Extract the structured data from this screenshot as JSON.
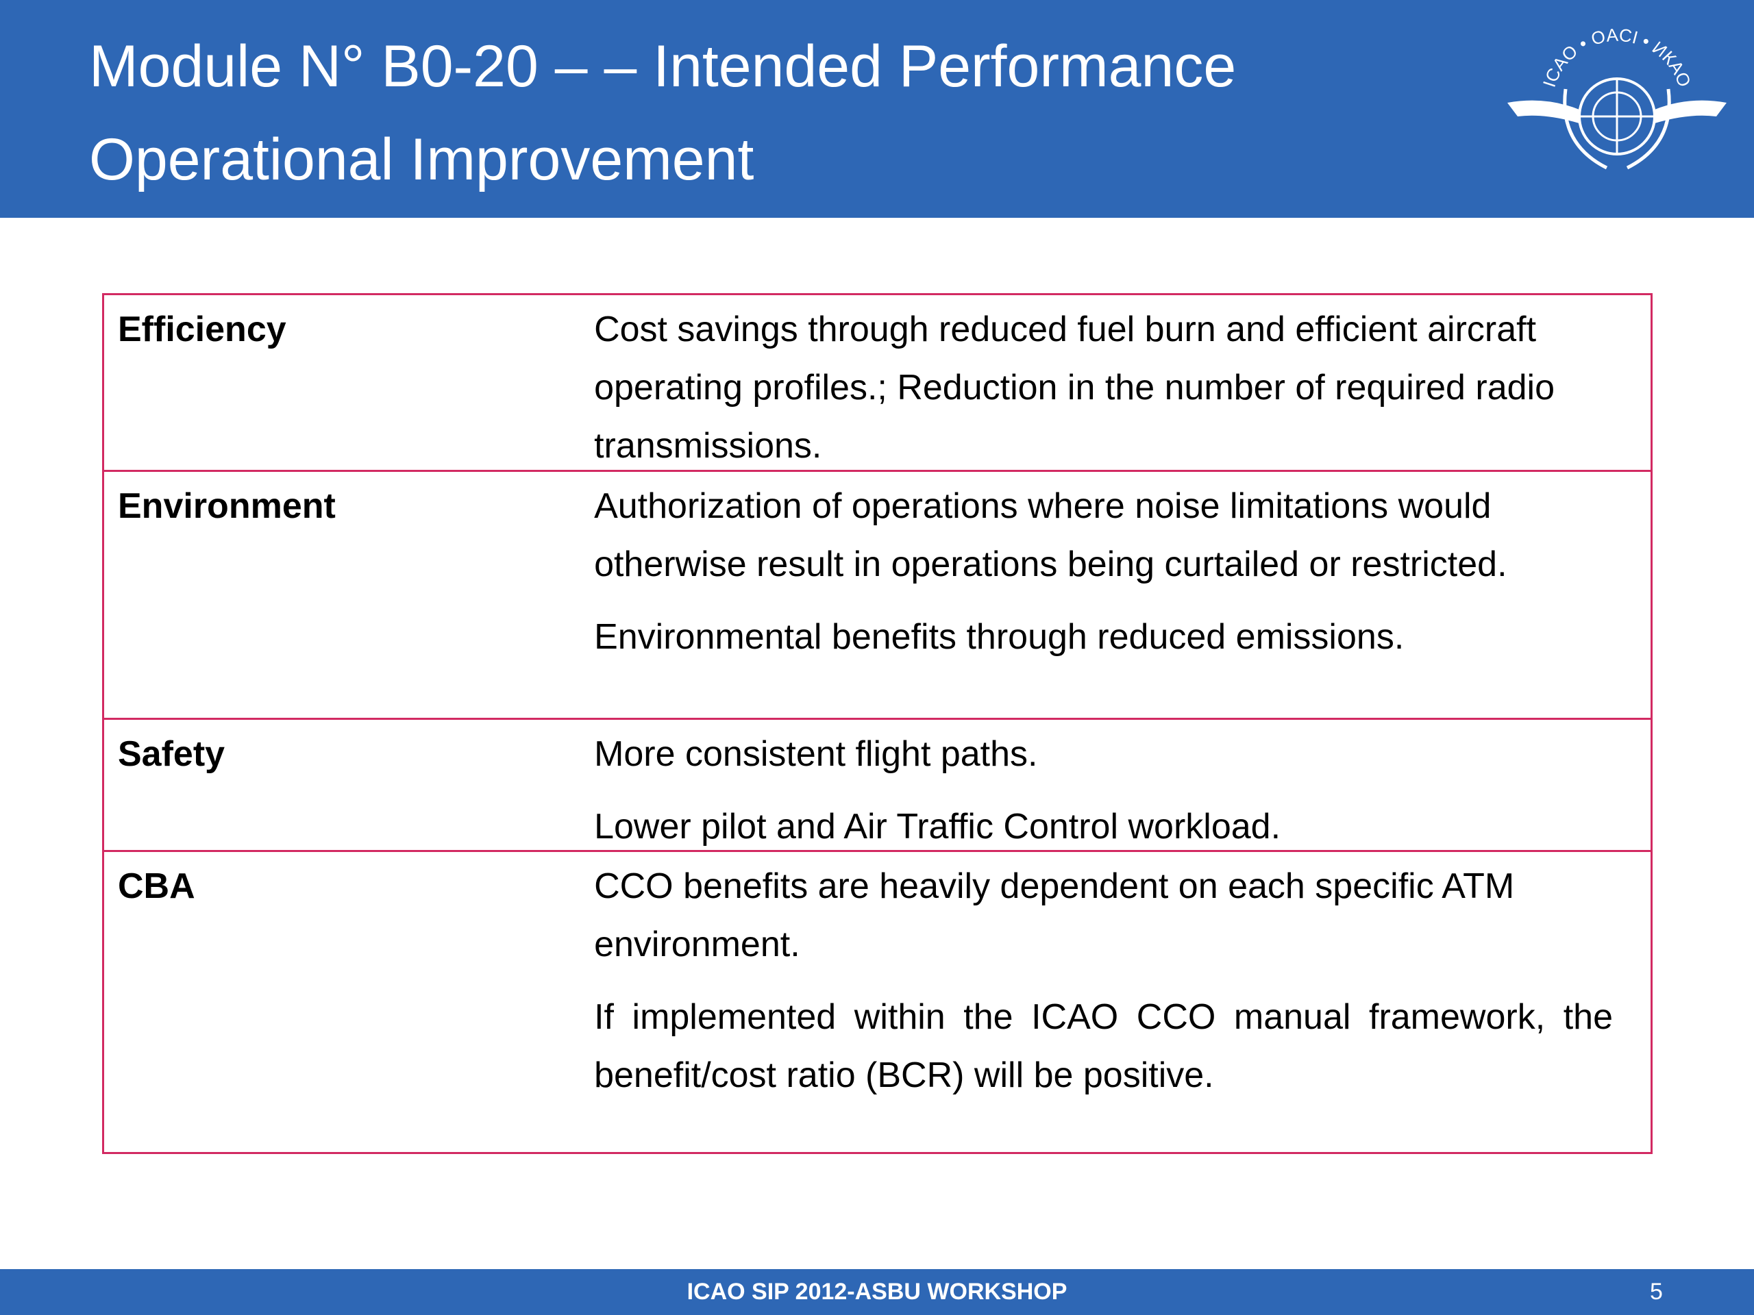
{
  "header": {
    "title": [
      "Module N° B0-20 – – Intended Performance",
      "Operational Improvement"
    ],
    "logo_text": "ICAO • OACI • ИКАО"
  },
  "table": {
    "rows": [
      {
        "label": "Efficiency",
        "paragraphs": [
          "Cost savings through reduced fuel burn and efficient aircraft operating profiles.; Reduction in the number of required radio transmissions."
        ]
      },
      {
        "label": "Environment",
        "paragraphs": [
          "Authorization of operations where noise limitations would otherwise result in operations being curtailed or restricted.",
          "Environmental benefits through reduced emissions."
        ]
      },
      {
        "label": "Safety",
        "paragraphs": [
          "More consistent flight paths.",
          "Lower pilot and Air Traffic Control workload."
        ]
      },
      {
        "label": "CBA",
        "paragraphs": [
          "CCO benefits are heavily dependent on each specific ATM environment.",
          "If implemented within the ICAO CCO manual framework, the benefit/cost ratio (BCR) will be positive."
        ]
      }
    ]
  },
  "footer": {
    "text": "ICAO SIP 2012-ASBU WORKSHOP",
    "page": "5"
  }
}
